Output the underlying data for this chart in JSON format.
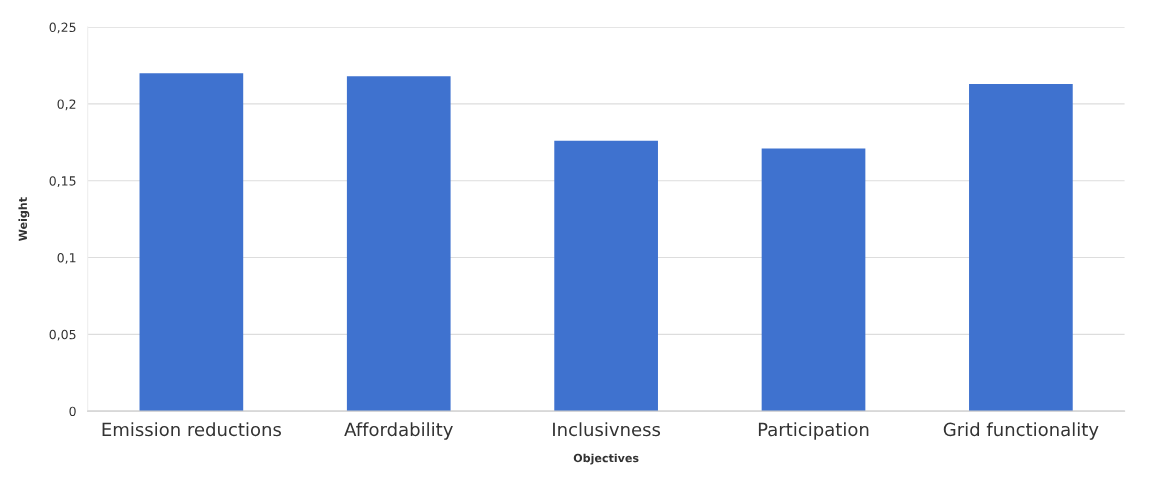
{
  "chart_data": {
    "type": "bar",
    "xlabel": "Objectives",
    "ylabel": "Weight",
    "categories": [
      "Emission reductions",
      "Affordability",
      "Inclusivness",
      "Participation",
      "Grid functionality"
    ],
    "values": [
      0.22,
      0.218,
      0.176,
      0.171,
      0.213
    ],
    "color": "#3f72cf",
    "ylim": [
      0,
      0.25
    ],
    "yticks": [
      {
        "value": 0,
        "label": "0"
      },
      {
        "value": 0.05,
        "label": "0,05"
      },
      {
        "value": 0.1,
        "label": "0,1"
      },
      {
        "value": 0.15,
        "label": "0,15"
      },
      {
        "value": 0.2,
        "label": "0,2"
      },
      {
        "value": 0.25,
        "label": "0,25"
      }
    ],
    "grid": "y"
  }
}
